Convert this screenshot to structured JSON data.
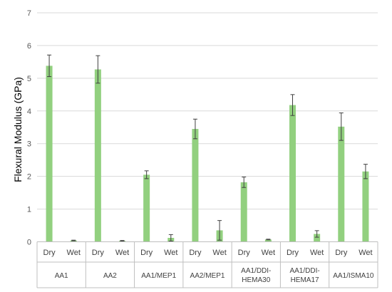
{
  "chart_data": {
    "type": "bar",
    "title": "",
    "ylabel": "Flexural Modulus (GPa)",
    "xlabel": "",
    "ylim": [
      0,
      7
    ],
    "yticks": [
      0,
      1,
      2,
      3,
      4,
      5,
      6,
      7
    ],
    "grid": true,
    "bar_color": "#92d07f",
    "groups": [
      {
        "label": [
          "AA1"
        ],
        "bars": [
          {
            "label": "Dry",
            "value": 5.38,
            "error": 0.33
          },
          {
            "label": "Wet",
            "value": 0.04,
            "error": 0.01
          }
        ]
      },
      {
        "label": [
          "AA2"
        ],
        "bars": [
          {
            "label": "Dry",
            "value": 5.27,
            "error": 0.42
          },
          {
            "label": "Wet",
            "value": 0.03,
            "error": 0.01
          }
        ]
      },
      {
        "label": [
          "AA1/MEP1"
        ],
        "bars": [
          {
            "label": "Dry",
            "value": 2.05,
            "error": 0.12
          },
          {
            "label": "Wet",
            "value": 0.12,
            "error": 0.1
          }
        ]
      },
      {
        "label": [
          "AA2/MEP1"
        ],
        "bars": [
          {
            "label": "Dry",
            "value": 3.45,
            "error": 0.3
          },
          {
            "label": "Wet",
            "value": 0.35,
            "error": 0.3
          }
        ]
      },
      {
        "label": [
          "AA1/DDI-",
          "HEMA30"
        ],
        "bars": [
          {
            "label": "Dry",
            "value": 1.82,
            "error": 0.16
          },
          {
            "label": "Wet",
            "value": 0.07,
            "error": 0.01
          }
        ]
      },
      {
        "label": [
          "AA1/DDI-",
          "HEMA17"
        ],
        "bars": [
          {
            "label": "Dry",
            "value": 4.18,
            "error": 0.32
          },
          {
            "label": "Wet",
            "value": 0.24,
            "error": 0.1
          }
        ]
      },
      {
        "label": [
          "AA1/ISMA10"
        ],
        "bars": [
          {
            "label": "Dry",
            "value": 3.52,
            "error": 0.42
          },
          {
            "label": "Wet",
            "value": 2.15,
            "error": 0.22
          }
        ]
      }
    ]
  }
}
